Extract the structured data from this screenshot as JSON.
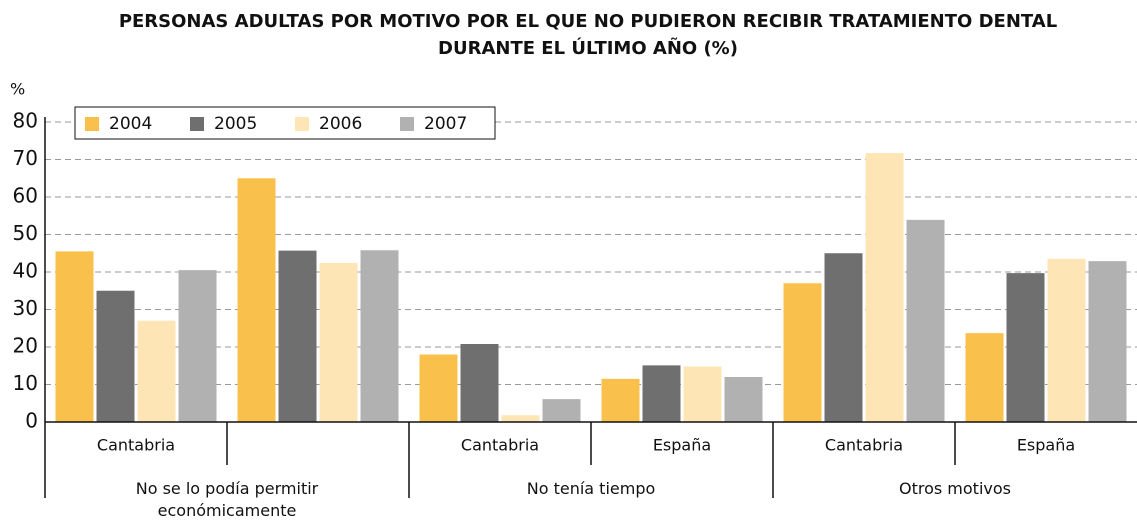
{
  "chart_data": {
    "type": "bar",
    "title": "PERSONAS ADULTAS POR MOTIVO POR EL QUE NO PUDIERON RECIBIR TRATAMIENTO DENTAL DURANTE EL ÚLTIMO AÑO (%)",
    "y_label": "%",
    "groups": [
      {
        "name": "No se lo podía permitir económicamente",
        "categories": [
          "Cantabria",
          null
        ]
      },
      {
        "name": "No tenía tiempo",
        "categories": [
          "Cantabria",
          "España"
        ]
      },
      {
        "name": "Otros motivos",
        "categories": [
          "Cantabria",
          "España"
        ]
      }
    ],
    "series": [
      {
        "name": "2004",
        "color": "#f9c04c",
        "values": [
          45.5,
          65,
          18,
          11.5,
          37,
          23.7
        ]
      },
      {
        "name": "2005",
        "color": "#6f6f6f",
        "values": [
          35,
          45.7,
          20.8,
          15.1,
          45,
          39.7
        ]
      },
      {
        "name": "2006",
        "color": "#fde5b5",
        "values": [
          27,
          42.4,
          1.8,
          14.8,
          71.7,
          43.5
        ]
      },
      {
        "name": "2007",
        "color": "#b1b1b1",
        "values": [
          40.5,
          45.8,
          6.1,
          12,
          53.9,
          42.9
        ]
      }
    ],
    "ylim": [
      0,
      80
    ],
    "yticks": [
      0,
      10,
      20,
      30,
      40,
      50,
      60,
      70,
      80
    ],
    "grid": true,
    "legend": "top-left"
  }
}
